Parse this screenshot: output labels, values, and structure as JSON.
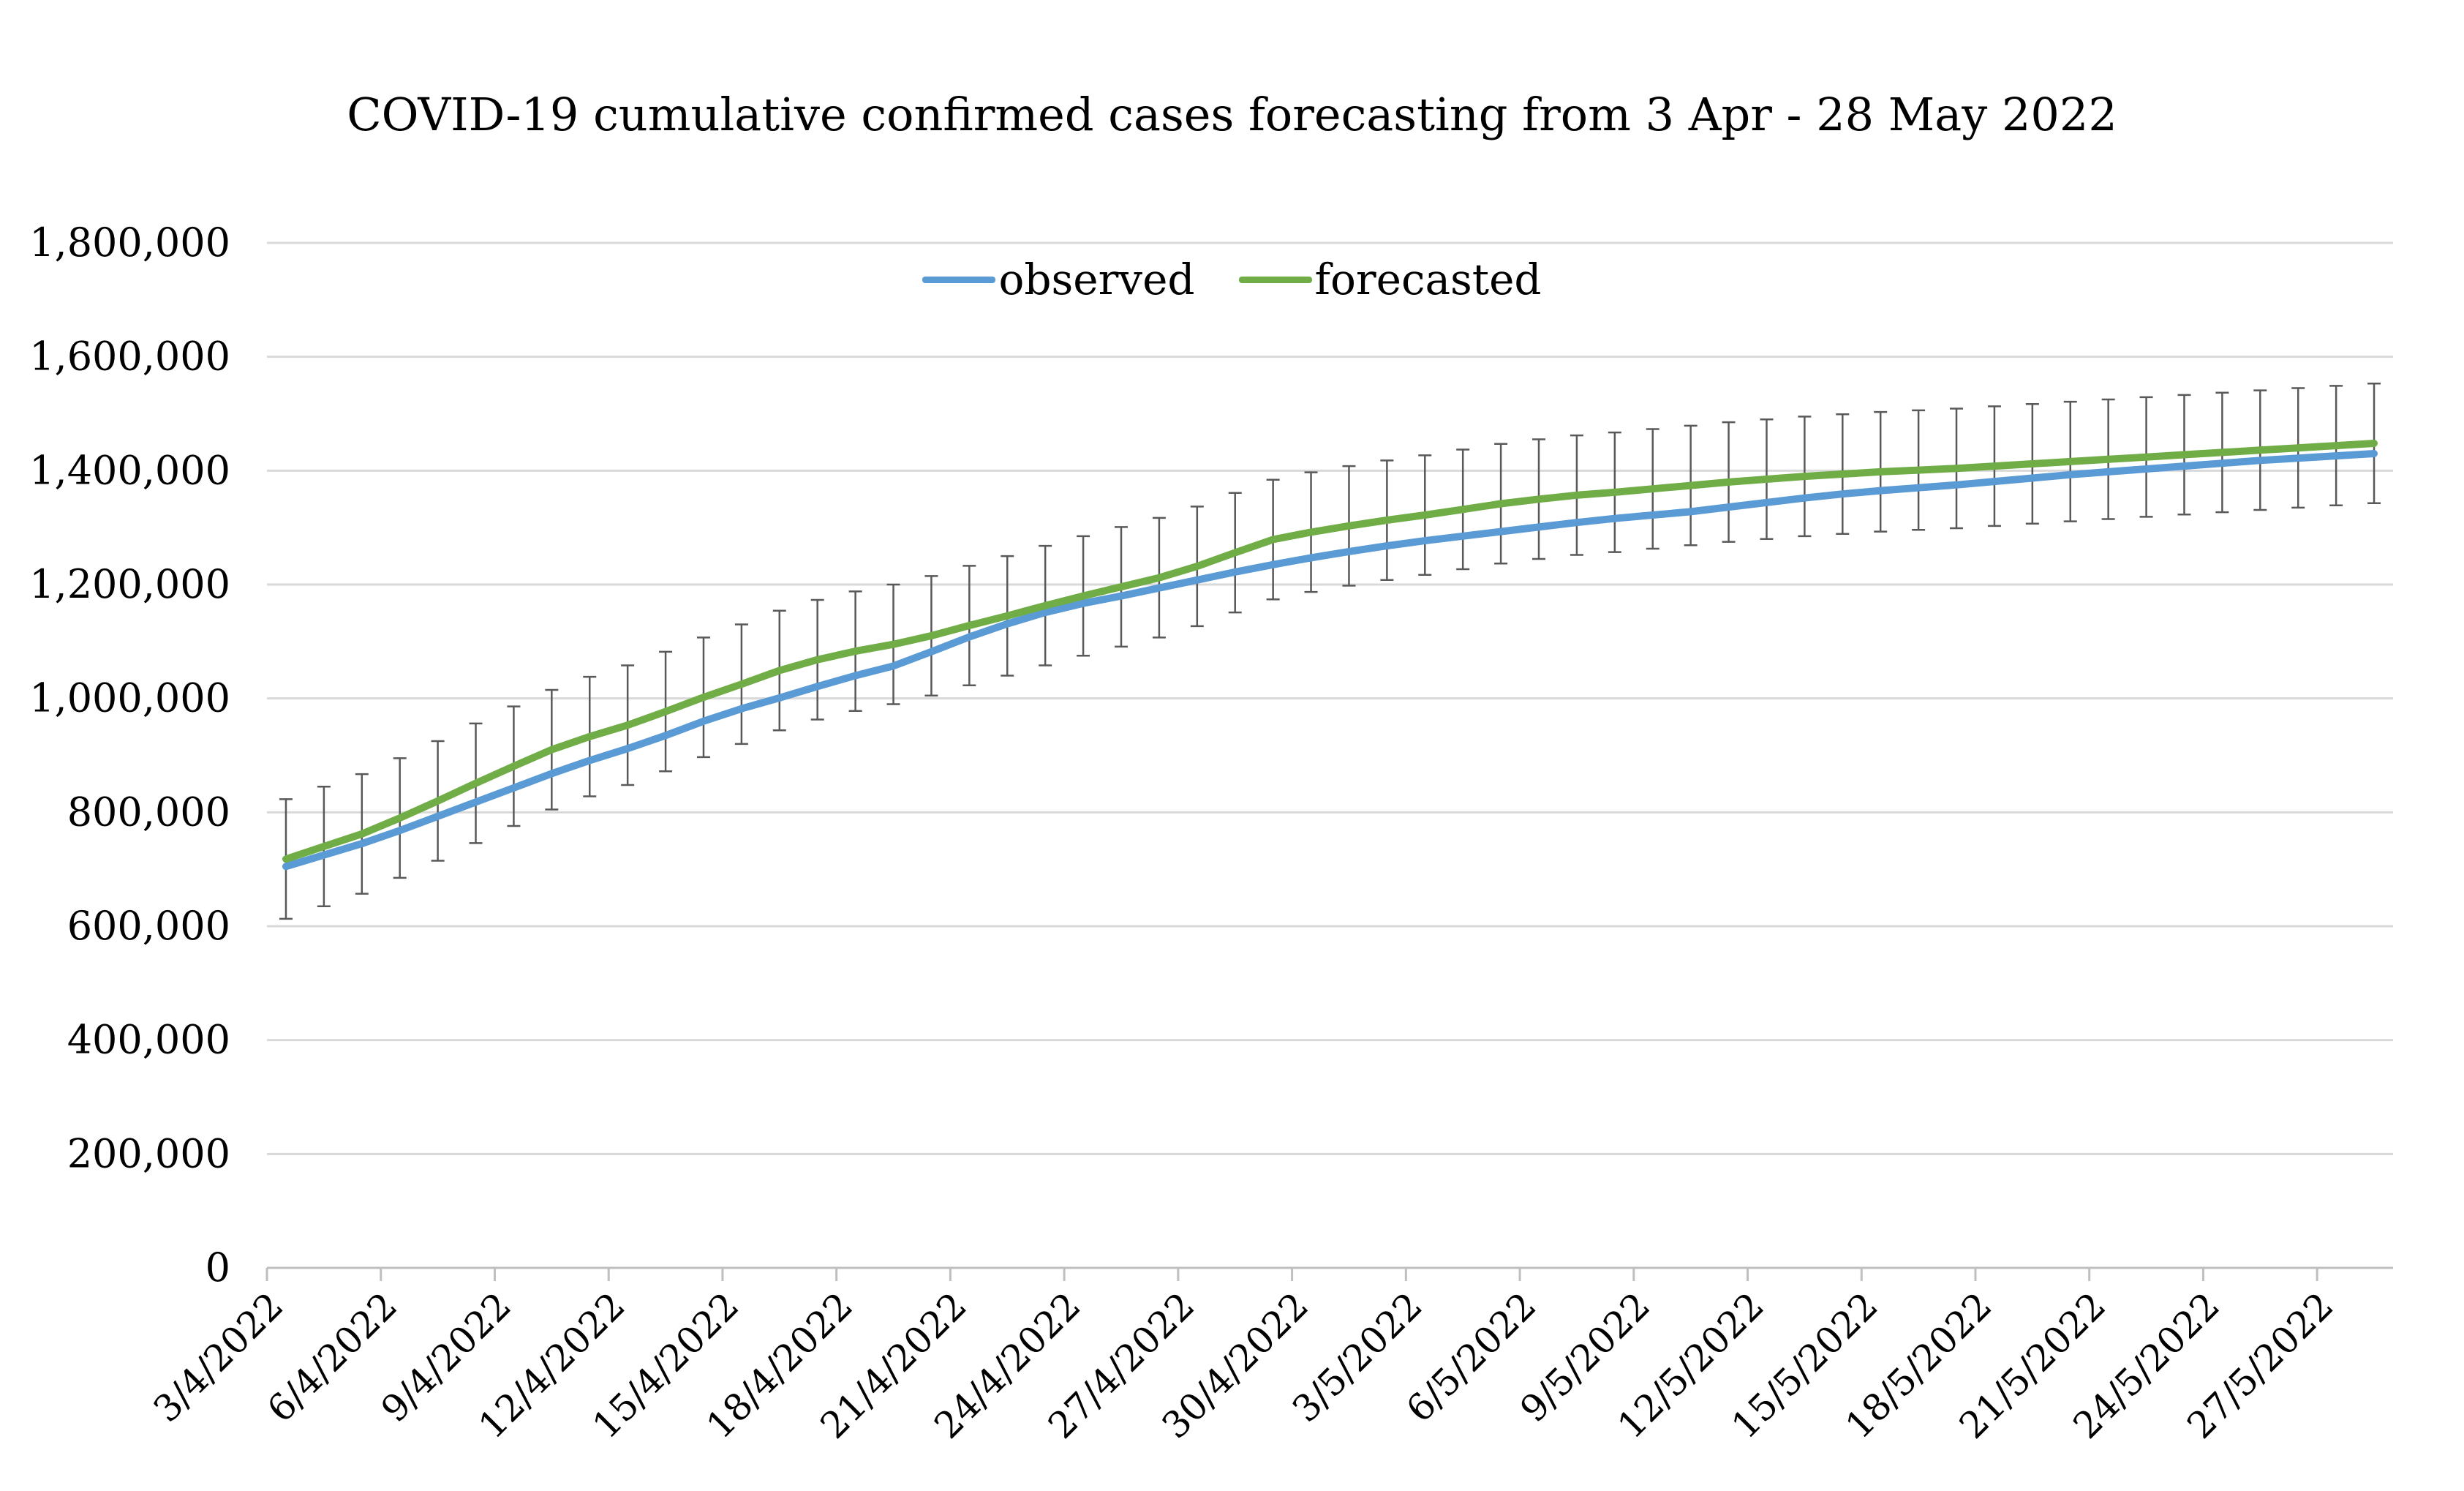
{
  "chart_data": {
    "type": "line",
    "title": "COVID-19 cumulative confirmed cases forecasting from 3 Apr - 28 May 2022",
    "xlabel": "",
    "ylabel": "",
    "ylim": [
      0,
      1800000
    ],
    "y_ticks": [
      "0",
      "200,000",
      "400,000",
      "600,000",
      "800,000",
      "1,000,000",
      "1,200,000",
      "1,400,000",
      "1,600,000",
      "1,800,000"
    ],
    "x_tick_labels": [
      "3/4/2022",
      "6/4/2022",
      "9/4/2022",
      "12/4/2022",
      "15/4/2022",
      "18/4/2022",
      "21/4/2022",
      "24/4/2022",
      "27/4/2022",
      "30/4/2022",
      "3/5/2022",
      "6/5/2022",
      "9/5/2022",
      "12/5/2022",
      "15/5/2022",
      "18/5/2022",
      "21/5/2022",
      "24/5/2022",
      "27/5/2022"
    ],
    "grid": true,
    "legend_position": "top-center",
    "x": [
      "3/4/2022",
      "4/4/2022",
      "5/4/2022",
      "6/4/2022",
      "7/4/2022",
      "8/4/2022",
      "9/4/2022",
      "10/4/2022",
      "11/4/2022",
      "12/4/2022",
      "13/4/2022",
      "14/4/2022",
      "15/4/2022",
      "16/4/2022",
      "17/4/2022",
      "18/4/2022",
      "19/4/2022",
      "20/4/2022",
      "21/4/2022",
      "22/4/2022",
      "23/4/2022",
      "24/4/2022",
      "25/4/2022",
      "26/4/2022",
      "27/4/2022",
      "28/4/2022",
      "29/4/2022",
      "30/4/2022",
      "1/5/2022",
      "2/5/2022",
      "3/5/2022",
      "4/5/2022",
      "5/5/2022",
      "6/5/2022",
      "7/5/2022",
      "8/5/2022",
      "9/5/2022",
      "10/5/2022",
      "11/5/2022",
      "12/5/2022",
      "13/5/2022",
      "14/5/2022",
      "15/5/2022",
      "16/5/2022",
      "17/5/2022",
      "18/5/2022",
      "19/5/2022",
      "20/5/2022",
      "21/5/2022",
      "22/5/2022",
      "23/5/2022",
      "24/5/2022",
      "25/5/2022",
      "26/5/2022",
      "27/5/2022",
      "28/5/2022"
    ],
    "series": [
      {
        "name": "observed",
        "color": "#5b9bd5",
        "values": [
          705000,
          725000,
          745000,
          768000,
          793000,
          818000,
          843000,
          868000,
          891000,
          912000,
          935000,
          960000,
          982000,
          1001000,
          1021000,
          1040000,
          1057000,
          1082000,
          1108000,
          1131000,
          1151000,
          1167000,
          1180000,
          1194000,
          1208000,
          1222000,
          1235000,
          1247000,
          1258000,
          1268000,
          1277000,
          1285000,
          1293000,
          1301000,
          1309000,
          1316000,
          1322000,
          1328000,
          1336000,
          1344000,
          1352000,
          1359000,
          1365000,
          1370000,
          1375000,
          1381000,
          1387000,
          1393000,
          1398000,
          1403000,
          1408000,
          1413000,
          1418000,
          1422000,
          1426000,
          1430000
        ]
      },
      {
        "name": "forecasted",
        "color": "#70ad47",
        "values": [
          718000,
          740000,
          762000,
          790000,
          820000,
          851000,
          881000,
          910000,
          933000,
          953000,
          977000,
          1002000,
          1025000,
          1049000,
          1068000,
          1083000,
          1095000,
          1110000,
          1128000,
          1145000,
          1163000,
          1180000,
          1196000,
          1212000,
          1232000,
          1256000,
          1279000,
          1292000,
          1303000,
          1313000,
          1322000,
          1332000,
          1342000,
          1350000,
          1357000,
          1362000,
          1368000,
          1374000,
          1380000,
          1385000,
          1390000,
          1394000,
          1398000,
          1401000,
          1404000,
          1408000,
          1412000,
          1416000,
          1420000,
          1424000,
          1428000,
          1432000,
          1436000,
          1440000,
          1444000,
          1448000
        ]
      }
    ],
    "error_bar": 105000
  },
  "colors": {
    "grid": "#d9d9d9",
    "axis": "#bfbfbf",
    "error_bar": "#595959"
  }
}
